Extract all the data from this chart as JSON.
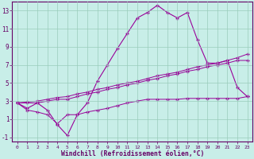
{
  "xlabel": "Windchill (Refroidissement éolien,°C)",
  "background_color": "#c8eee8",
  "plot_bg": "#c8eee8",
  "grid_color": "#99ccbb",
  "line_color": "#990099",
  "border_color": "#660066",
  "x_hours": [
    0,
    1,
    2,
    3,
    4,
    5,
    6,
    7,
    8,
    9,
    10,
    11,
    12,
    13,
    14,
    15,
    16,
    17,
    18,
    19,
    20,
    21,
    22,
    23
  ],
  "windchill": [
    2.8,
    2.2,
    2.8,
    2.0,
    0.4,
    -0.8,
    1.5,
    2.8,
    5.2,
    7.0,
    8.8,
    10.5,
    12.2,
    12.8,
    13.6,
    12.8,
    12.2,
    12.8,
    9.8,
    7.2,
    7.2,
    7.5,
    4.5,
    3.5
  ],
  "line1": [
    2.8,
    2.8,
    2.8,
    3.0,
    3.2,
    3.2,
    3.5,
    3.8,
    4.0,
    4.3,
    4.5,
    4.8,
    5.0,
    5.3,
    5.5,
    5.8,
    6.0,
    6.3,
    6.5,
    6.8,
    7.0,
    7.2,
    7.5,
    7.5
  ],
  "line2": [
    2.8,
    2.9,
    3.0,
    3.2,
    3.4,
    3.5,
    3.8,
    4.0,
    4.3,
    4.5,
    4.8,
    5.0,
    5.2,
    5.5,
    5.8,
    6.0,
    6.2,
    6.5,
    6.8,
    7.0,
    7.2,
    7.5,
    7.8,
    8.2
  ],
  "line3": [
    2.8,
    2.0,
    1.8,
    1.5,
    0.5,
    1.5,
    1.5,
    1.8,
    2.0,
    2.2,
    2.5,
    2.8,
    3.0,
    3.2,
    3.2,
    3.2,
    3.2,
    3.3,
    3.3,
    3.3,
    3.3,
    3.3,
    3.3,
    3.5
  ],
  "ylim": [
    -1.5,
    14.0
  ],
  "xlim": [
    -0.5,
    23.5
  ],
  "yticks": [
    -1,
    1,
    3,
    5,
    7,
    9,
    11,
    13
  ],
  "xticks": [
    0,
    1,
    2,
    3,
    4,
    5,
    6,
    7,
    8,
    9,
    10,
    11,
    12,
    13,
    14,
    15,
    16,
    17,
    18,
    19,
    20,
    21,
    22,
    23
  ]
}
